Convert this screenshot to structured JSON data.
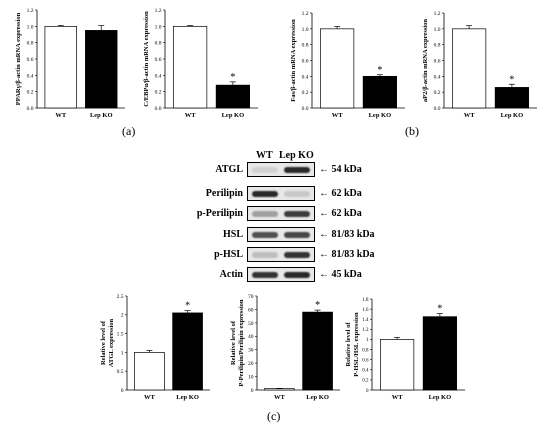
{
  "panel_letters": {
    "a": "(a)",
    "b": "(b)",
    "c": "(c)"
  },
  "blot": {
    "lane_headers": [
      "WT",
      "Lep KO"
    ],
    "rows": [
      {
        "protein": "ATGL",
        "size": "54 kDa"
      },
      {
        "protein": "Perilipin",
        "size": "62 kDa"
      },
      {
        "protein": "p-Perilipin",
        "size": "62 kDa"
      },
      {
        "protein": "HSL",
        "size": "81/83 kDa"
      },
      {
        "protein": "p-HSL",
        "size": "81/83 kDa"
      },
      {
        "protein": "Actin",
        "size": "45 kDa"
      }
    ]
  },
  "colors": {
    "wt_bar": "#ffffff",
    "ko_bar": "#000000",
    "axis": "#000000"
  },
  "chart_data": [
    {
      "type": "bar",
      "categories": [
        "WT",
        "Lep  KO"
      ],
      "values": [
        1.0,
        0.95
      ],
      "errors": [
        0.01,
        0.06
      ],
      "significant": [
        false,
        false
      ],
      "ylabel": "PPARγ/β-actin mRNA expression",
      "ylim": [
        0,
        1.2
      ],
      "yticks": [
        "0.0",
        "0.2",
        "0.4",
        "0.6",
        "0.8",
        "1.0",
        "1.2"
      ]
    },
    {
      "type": "bar",
      "categories": [
        "WT",
        "Lep  KO"
      ],
      "values": [
        1.0,
        0.28
      ],
      "errors": [
        0.01,
        0.04
      ],
      "significant": [
        false,
        true
      ],
      "ylabel": "C/EBPα/β-actin mRNA expression",
      "ylim": [
        0,
        1.2
      ],
      "yticks": [
        "0.0",
        "0.2",
        "0.4",
        "0.6",
        "0.8",
        "1.0",
        "1.2"
      ]
    },
    {
      "type": "bar",
      "categories": [
        "WT",
        "Lep  KO"
      ],
      "values": [
        1.0,
        0.4
      ],
      "errors": [
        0.03,
        0.02
      ],
      "significant": [
        false,
        true
      ],
      "ylabel": "Fas/β-actin mRNA expression",
      "ylim": [
        0,
        1.2
      ],
      "yticks": [
        "0.0",
        "0.2",
        "0.4",
        "0.6",
        "0.8",
        "1.0",
        "1.2"
      ]
    },
    {
      "type": "bar",
      "categories": [
        "WT",
        "Lep  KO"
      ],
      "values": [
        1.0,
        0.26
      ],
      "errors": [
        0.04,
        0.04
      ],
      "significant": [
        false,
        true
      ],
      "ylabel": "aP2/β-actin mRNA expression",
      "ylim": [
        0,
        1.2
      ],
      "yticks": [
        "0.0",
        "0.2",
        "0.4",
        "0.6",
        "0.8",
        "1.0",
        "1.2"
      ]
    },
    {
      "type": "bar",
      "categories": [
        "WT",
        "Lep KO"
      ],
      "values": [
        1.0,
        2.05
      ],
      "errors": [
        0.05,
        0.06
      ],
      "significant": [
        false,
        true
      ],
      "ylabel": "Relative level of ATGL expression",
      "ylim": [
        0,
        2.5
      ],
      "yticks": [
        "0",
        "0.5",
        "1",
        "1.5",
        "2",
        "2.5"
      ]
    },
    {
      "type": "bar",
      "categories": [
        "WT",
        "Lep KO"
      ],
      "values": [
        1.0,
        58
      ],
      "errors": [
        0.2,
        1.5
      ],
      "significant": [
        false,
        true
      ],
      "ylabel": "Relative level of P-Perilipin/Perilipin expression",
      "ylim": [
        0,
        70
      ],
      "yticks": [
        "0",
        "10",
        "20",
        "30",
        "40",
        "50",
        "60",
        "70"
      ]
    },
    {
      "type": "bar",
      "categories": [
        "WT",
        "Lep KO"
      ],
      "values": [
        1.0,
        1.45
      ],
      "errors": [
        0.04,
        0.06
      ],
      "significant": [
        false,
        true
      ],
      "ylabel": "Relative level of P-HSL/HSL expression",
      "ylim": [
        0,
        1.8
      ],
      "yticks": [
        "0",
        "0.2",
        "0.4",
        "0.6",
        "0.8",
        "1",
        "1.2",
        "1.4",
        "1.6",
        "1.8"
      ]
    }
  ]
}
